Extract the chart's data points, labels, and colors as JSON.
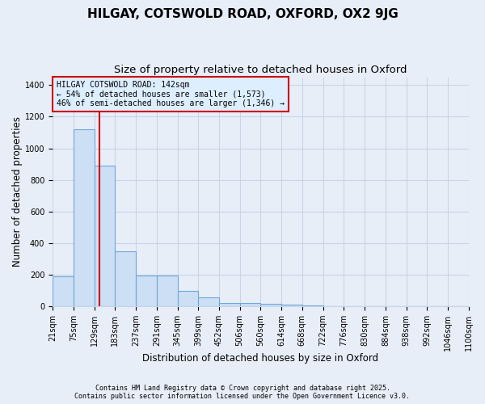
{
  "title1": "HILGAY, COTSWOLD ROAD, OXFORD, OX2 9JG",
  "title2": "Size of property relative to detached houses in Oxford",
  "xlabel": "Distribution of detached houses by size in Oxford",
  "ylabel": "Number of detached properties",
  "bin_edges": [
    21,
    75,
    129,
    183,
    237,
    291,
    345,
    399,
    452,
    506,
    560,
    614,
    668,
    722,
    776,
    830,
    884,
    938,
    992,
    1046,
    1100
  ],
  "bar_heights": [
    190,
    1120,
    890,
    350,
    195,
    195,
    100,
    55,
    22,
    20,
    18,
    10,
    5,
    3,
    2,
    0,
    2,
    0,
    0,
    0
  ],
  "bar_color": "#ccdff5",
  "bar_edge_color": "#6fa8d6",
  "vline_x": 142,
  "vline_color": "#cc0000",
  "annotation_title": "HILGAY COTSWOLD ROAD: 142sqm",
  "annotation_line1": "← 54% of detached houses are smaller (1,573)",
  "annotation_line2": "46% of semi-detached houses are larger (1,346) →",
  "annotation_box_facecolor": "#ddeeff",
  "annotation_box_edgecolor": "#cc0000",
  "background_color": "#e8eef8",
  "grid_color": "#c8d4e8",
  "ylim": [
    0,
    1450
  ],
  "yticks": [
    0,
    200,
    400,
    600,
    800,
    1000,
    1200,
    1400
  ],
  "footer_line1": "Contains HM Land Registry data © Crown copyright and database right 2025.",
  "footer_line2": "Contains public sector information licensed under the Open Government Licence v3.0.",
  "title1_fontsize": 11,
  "title2_fontsize": 9.5,
  "axis_label_fontsize": 8.5,
  "tick_fontsize": 7,
  "annotation_fontsize": 7,
  "footer_fontsize": 6
}
